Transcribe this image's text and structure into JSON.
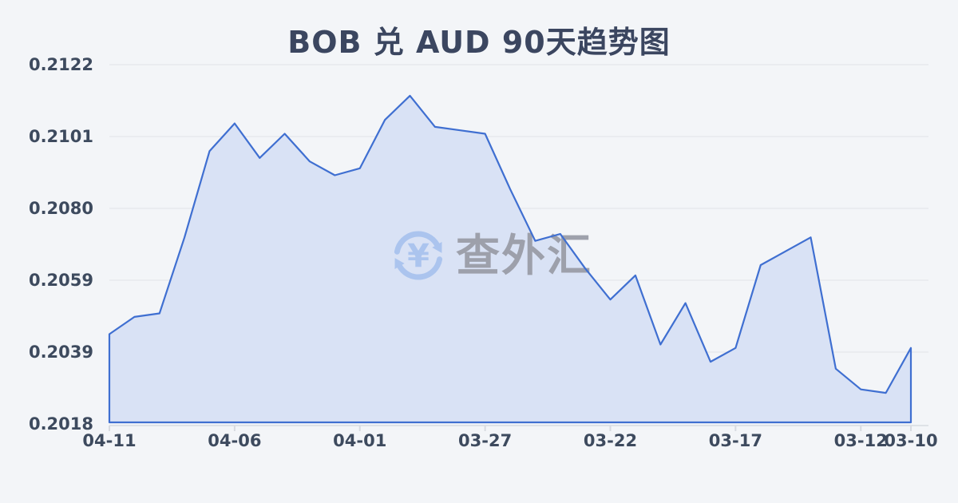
{
  "title": "BOB 兑 AUD 90天趋势图",
  "watermark": {
    "text": "查外汇",
    "symbol": "¥",
    "icon": "currency-exchange-circle",
    "icon_color": "#a9c3ee",
    "text_color": "#9a9da8"
  },
  "colors": {
    "background": "#f3f5f8",
    "title_color": "#3b4660",
    "axis_label": "#3d4a5e",
    "line": "#3f6fd1",
    "fill": "#d9e2f5",
    "gridline": "#e8eaee",
    "axis": "#d8dbe1",
    "wm_icon": "#a9c3ee",
    "wm_text": "#9a9da8"
  },
  "chart_data": {
    "type": "area",
    "title": "BOB 兑 AUD 90天趋势图",
    "base_currency": "BOB",
    "quote_currency": "AUD",
    "period_label": "90天",
    "x_order": "latest-date-on-left",
    "x": [
      "04-11",
      "04-10",
      "04-09",
      "04-08",
      "04-07",
      "04-06",
      "04-05",
      "04-04",
      "04-03",
      "04-02",
      "04-01",
      "03-31",
      "03-30",
      "03-29",
      "03-28",
      "03-27",
      "03-26",
      "03-25",
      "03-24",
      "03-23",
      "03-22",
      "03-21",
      "03-20",
      "03-19",
      "03-18",
      "03-17",
      "03-16",
      "03-15",
      "03-14",
      "03-13",
      "03-12",
      "03-11",
      "03-10"
    ],
    "values": [
      0.2044,
      0.2049,
      0.205,
      0.2072,
      0.2097,
      0.2105,
      0.2095,
      0.2102,
      0.2094,
      0.209,
      0.2092,
      0.2106,
      0.2113,
      0.2104,
      0.2103,
      0.2102,
      0.2086,
      0.2071,
      0.2073,
      0.2063,
      0.2054,
      0.2061,
      0.2041,
      0.2053,
      0.2036,
      0.204,
      0.2064,
      0.2068,
      0.2072,
      0.2034,
      0.2028,
      0.2027,
      0.204
    ],
    "ylim": [
      0.2018,
      0.2122
    ],
    "yticks": [
      "0.2122",
      "0.2101",
      "0.2080",
      "0.2059",
      "0.2039",
      "0.2018"
    ],
    "xticks": [
      {
        "label": "04-11",
        "index": 0
      },
      {
        "label": "04-06",
        "index": 5
      },
      {
        "label": "04-01",
        "index": 10
      },
      {
        "label": "03-27",
        "index": 15
      },
      {
        "label": "03-22",
        "index": 20
      },
      {
        "label": "03-17",
        "index": 25
      },
      {
        "label": "03-12",
        "index": 30
      },
      {
        "label": "03-10",
        "index": 32
      }
    ],
    "grid": "horizontal",
    "legend": "none"
  }
}
